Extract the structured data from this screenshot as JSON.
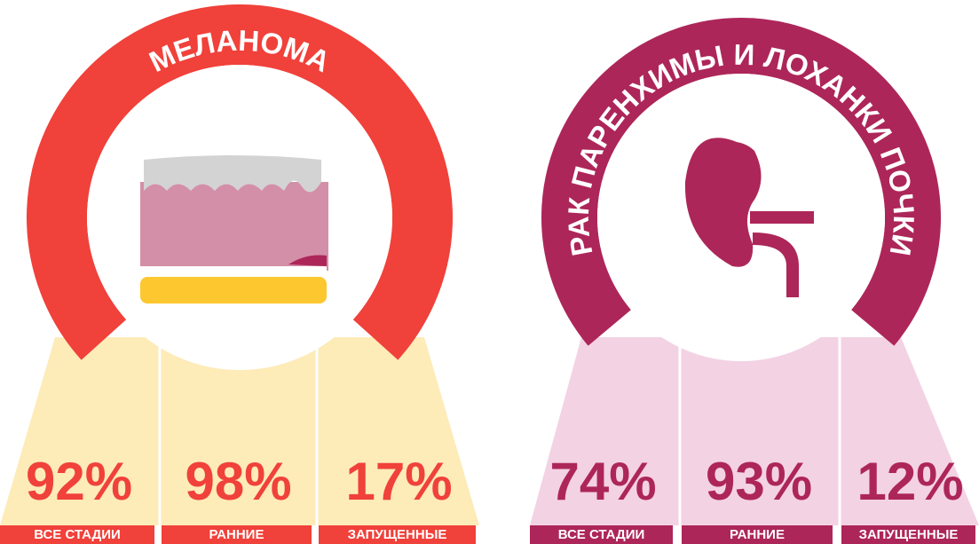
{
  "panels": [
    {
      "title": "МЕЛАНОМА",
      "stats": [
        {
          "value": "92%",
          "label": "ВСЕ СТАДИИ"
        },
        {
          "value": "98%",
          "label": "РАННИЕ"
        },
        {
          "value": "17%",
          "label": "ЗАПУЩЕННЫЕ"
        }
      ]
    },
    {
      "title": "РАК ПАРЕНХИМЫ И ЛОХАНКИ ПОЧКИ",
      "stats": [
        {
          "value": "74%",
          "label": "ВСЕ СТАДИИ"
        },
        {
          "value": "93%",
          "label": "РАННИЕ"
        },
        {
          "value": "12%",
          "label": "ЗАПУЩЕННЫЕ"
        }
      ]
    }
  ]
}
